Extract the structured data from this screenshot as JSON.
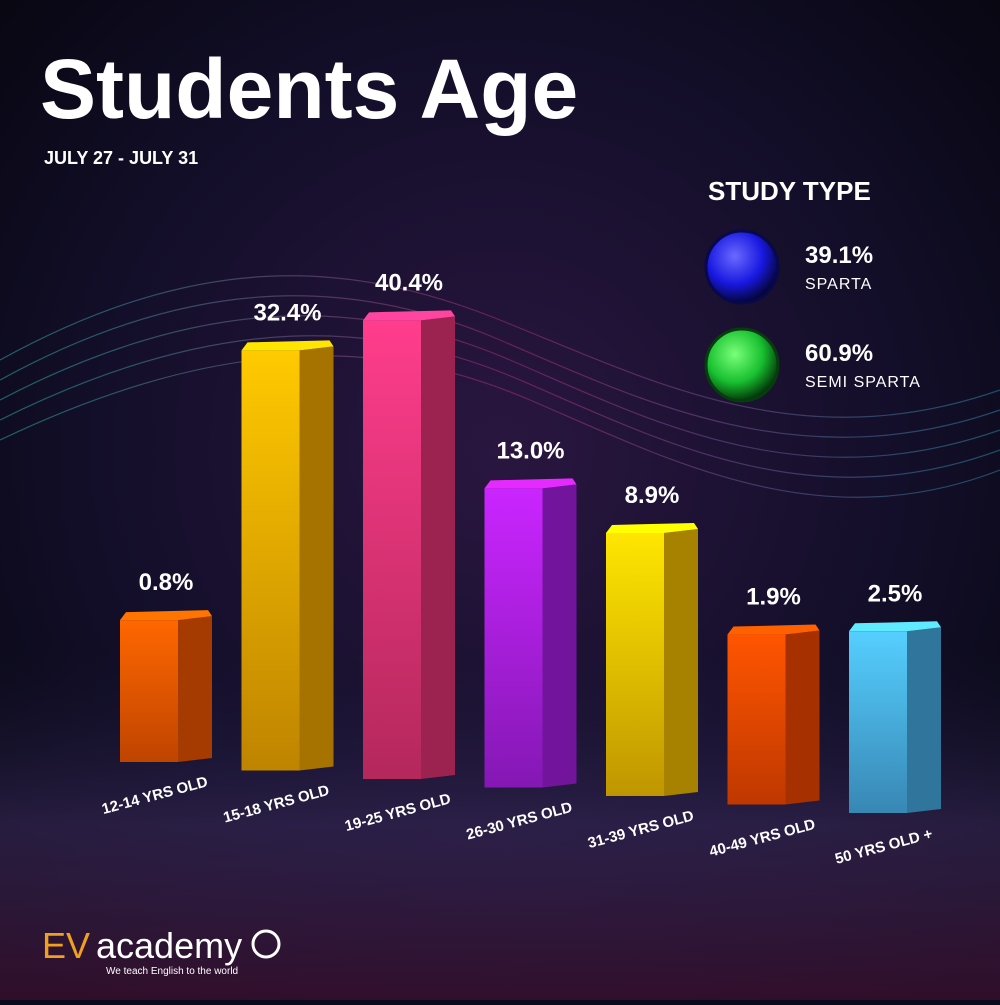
{
  "chart_data": {
    "type": "bar",
    "title": "Students Age",
    "subtitle": "JULY 27 - JULY 31",
    "categories": [
      "12-14 YRS OLD",
      "15-18 YRS OLD",
      "19-25 YRS OLD",
      "26-30 YRS OLD",
      "31-39 YRS OLD",
      "40-49 YRS OLD",
      "50 YRS OLD +"
    ],
    "values": [
      0.8,
      32.4,
      40.4,
      13.0,
      8.9,
      1.9,
      2.5
    ],
    "value_labels": [
      "0.8%",
      "32.4%",
      "40.4%",
      "13.0%",
      "8.9%",
      "1.9%",
      "2.5%"
    ],
    "colors": [
      "#ff5a00",
      "#ffb000",
      "#f0357a",
      "#b020f0",
      "#ffc800",
      "#ff4a00",
      "#4ab4f0"
    ],
    "legend": {
      "title": "STUDY TYPE",
      "items": [
        {
          "name": "SPARTA",
          "value": 39.1,
          "label": "39.1%",
          "color": "#1a1aff"
        },
        {
          "name": "SEMI SPARTA",
          "value": 60.9,
          "label": "60.9%",
          "color": "#18c830"
        }
      ]
    }
  },
  "brand": {
    "name_part1": "EV",
    "name_part2": "academy",
    "tagline": "We teach English to the world"
  }
}
